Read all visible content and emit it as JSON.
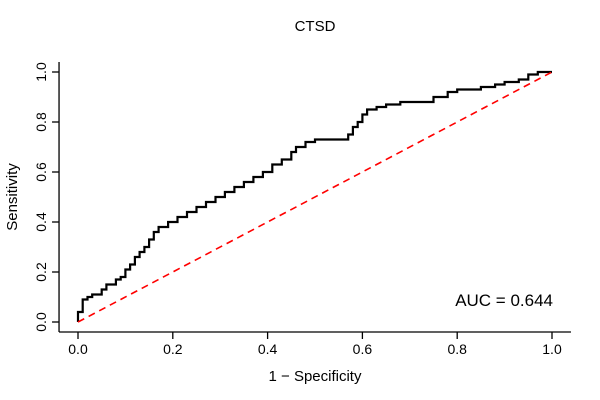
{
  "chart_data": {
    "type": "line",
    "title": "CTSD",
    "xlabel": "1 − Specificity",
    "ylabel": "Sensitivity",
    "xlim": [
      0,
      1
    ],
    "ylim": [
      0,
      1
    ],
    "grid": false,
    "x_ticks": [
      "0.0",
      "0.2",
      "0.4",
      "0.6",
      "0.8",
      "1.0"
    ],
    "y_ticks": [
      "0.0",
      "0.2",
      "0.4",
      "0.6",
      "0.8",
      "1.0"
    ],
    "annotation": "AUC = 0.644",
    "colors": {
      "roc_curve": "#000000",
      "reference_line": "#ff0000",
      "axis": "#000000"
    },
    "series": [
      {
        "name": "ROC curve",
        "style": "solid",
        "color_key": "roc_curve",
        "width": 2.2,
        "points": [
          [
            0.0,
            0.0
          ],
          [
            0.0,
            0.04
          ],
          [
            0.01,
            0.04
          ],
          [
            0.01,
            0.09
          ],
          [
            0.02,
            0.09
          ],
          [
            0.02,
            0.1
          ],
          [
            0.03,
            0.1
          ],
          [
            0.03,
            0.11
          ],
          [
            0.05,
            0.11
          ],
          [
            0.05,
            0.13
          ],
          [
            0.06,
            0.13
          ],
          [
            0.06,
            0.15
          ],
          [
            0.08,
            0.15
          ],
          [
            0.08,
            0.17
          ],
          [
            0.09,
            0.17
          ],
          [
            0.09,
            0.18
          ],
          [
            0.1,
            0.18
          ],
          [
            0.1,
            0.21
          ],
          [
            0.11,
            0.21
          ],
          [
            0.11,
            0.23
          ],
          [
            0.12,
            0.23
          ],
          [
            0.12,
            0.26
          ],
          [
            0.13,
            0.26
          ],
          [
            0.13,
            0.28
          ],
          [
            0.14,
            0.28
          ],
          [
            0.14,
            0.3
          ],
          [
            0.15,
            0.3
          ],
          [
            0.15,
            0.33
          ],
          [
            0.16,
            0.33
          ],
          [
            0.16,
            0.36
          ],
          [
            0.17,
            0.36
          ],
          [
            0.17,
            0.38
          ],
          [
            0.19,
            0.38
          ],
          [
            0.19,
            0.4
          ],
          [
            0.21,
            0.4
          ],
          [
            0.21,
            0.42
          ],
          [
            0.23,
            0.42
          ],
          [
            0.23,
            0.44
          ],
          [
            0.25,
            0.44
          ],
          [
            0.25,
            0.46
          ],
          [
            0.27,
            0.46
          ],
          [
            0.27,
            0.48
          ],
          [
            0.29,
            0.48
          ],
          [
            0.29,
            0.5
          ],
          [
            0.31,
            0.5
          ],
          [
            0.31,
            0.52
          ],
          [
            0.33,
            0.52
          ],
          [
            0.33,
            0.54
          ],
          [
            0.35,
            0.54
          ],
          [
            0.35,
            0.56
          ],
          [
            0.37,
            0.56
          ],
          [
            0.37,
            0.58
          ],
          [
            0.39,
            0.58
          ],
          [
            0.39,
            0.6
          ],
          [
            0.41,
            0.6
          ],
          [
            0.41,
            0.63
          ],
          [
            0.43,
            0.63
          ],
          [
            0.43,
            0.65
          ],
          [
            0.45,
            0.65
          ],
          [
            0.45,
            0.68
          ],
          [
            0.46,
            0.68
          ],
          [
            0.46,
            0.7
          ],
          [
            0.48,
            0.7
          ],
          [
            0.48,
            0.72
          ],
          [
            0.5,
            0.72
          ],
          [
            0.5,
            0.73
          ],
          [
            0.57,
            0.73
          ],
          [
            0.57,
            0.75
          ],
          [
            0.58,
            0.75
          ],
          [
            0.58,
            0.78
          ],
          [
            0.59,
            0.78
          ],
          [
            0.59,
            0.8
          ],
          [
            0.6,
            0.8
          ],
          [
            0.6,
            0.83
          ],
          [
            0.61,
            0.83
          ],
          [
            0.61,
            0.85
          ],
          [
            0.63,
            0.85
          ],
          [
            0.63,
            0.86
          ],
          [
            0.65,
            0.86
          ],
          [
            0.65,
            0.87
          ],
          [
            0.68,
            0.87
          ],
          [
            0.68,
            0.88
          ],
          [
            0.75,
            0.88
          ],
          [
            0.75,
            0.9
          ],
          [
            0.78,
            0.9
          ],
          [
            0.78,
            0.92
          ],
          [
            0.8,
            0.92
          ],
          [
            0.8,
            0.93
          ],
          [
            0.85,
            0.93
          ],
          [
            0.85,
            0.94
          ],
          [
            0.88,
            0.94
          ],
          [
            0.88,
            0.95
          ],
          [
            0.9,
            0.95
          ],
          [
            0.9,
            0.96
          ],
          [
            0.93,
            0.96
          ],
          [
            0.93,
            0.97
          ],
          [
            0.95,
            0.97
          ],
          [
            0.95,
            0.99
          ],
          [
            0.97,
            0.99
          ],
          [
            0.97,
            1.0
          ],
          [
            1.0,
            1.0
          ]
        ]
      },
      {
        "name": "reference diagonal",
        "style": "dashed",
        "color_key": "reference_line",
        "width": 1.6,
        "points": [
          [
            0.0,
            0.0
          ],
          [
            1.0,
            1.0
          ]
        ]
      }
    ]
  }
}
